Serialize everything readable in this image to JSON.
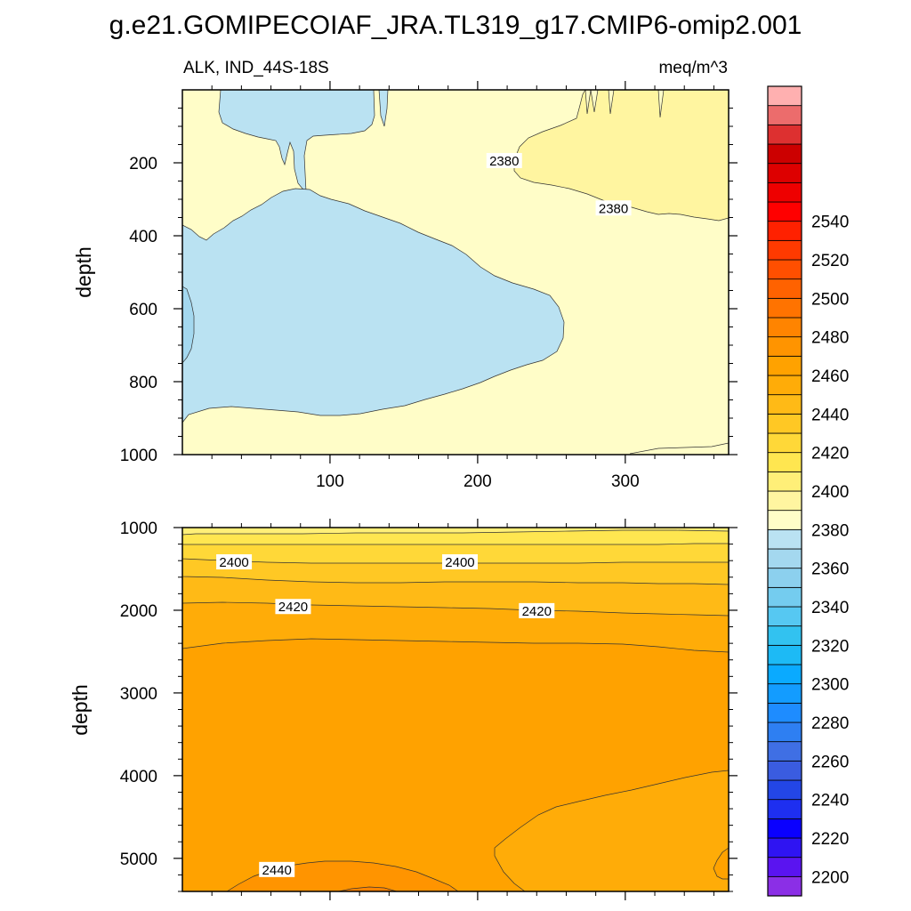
{
  "title": "g.e21.GOMIPECOIAF_JRA.TL319_g17.CMIP6-omip2.001",
  "variable_label": "ALK, IND_44S-18S",
  "units_label": "meq/m^3",
  "colors": {
    "pale_yellow": "#FFFDC8",
    "yellow_2390": "#FFF5A0",
    "yellow_2400": "#FFEF78",
    "yellow_2405": "#FFE650",
    "gold_2410": "#FFD838",
    "gold_2415": "#FFC824",
    "amber_2420": "#FFBA16",
    "orange_2425": "#FFAC08",
    "orange_2430": "#FFA200",
    "orange_2440": "#FF9400",
    "light_blue_2370": "#BAE2F2",
    "contour_line": "#333333"
  },
  "chart_data": [
    {
      "type": "contour",
      "panel": "upper",
      "xlabel": "",
      "ylabel": "depth",
      "xlim": [
        0,
        370
      ],
      "ylim": [
        1000,
        0
      ],
      "x_ticks": [
        100,
        200,
        300
      ],
      "x_tick_labels": [
        "100",
        "200",
        "300"
      ],
      "y_ticks": [
        200,
        400,
        600,
        800,
        1000
      ],
      "y_tick_labels": [
        "200",
        "400",
        "600",
        "800",
        "1000"
      ],
      "contour_labels": [
        {
          "text": "2380",
          "x": 218,
          "y": 195
        },
        {
          "text": "2380",
          "x": 292,
          "y": 325
        }
      ]
    },
    {
      "type": "contour",
      "panel": "lower",
      "xlabel": "",
      "ylabel": "depth",
      "xlim": [
        0,
        370
      ],
      "ylim": [
        5400,
        1000
      ],
      "x_ticks": [
        100,
        200,
        300
      ],
      "y_ticks": [
        1000,
        2000,
        3000,
        4000,
        5000
      ],
      "y_tick_labels": [
        "1000",
        "2000",
        "3000",
        "4000",
        "5000"
      ],
      "contour_labels": [
        {
          "text": "2400",
          "x": 35,
          "y": 1420
        },
        {
          "text": "2400",
          "x": 188,
          "y": 1420
        },
        {
          "text": "2420",
          "x": 75,
          "y": 1960
        },
        {
          "text": "2420",
          "x": 240,
          "y": 2010
        },
        {
          "text": "2440",
          "x": 64,
          "y": 5140
        }
      ]
    }
  ],
  "colorbar": {
    "levels": [
      2195,
      2200,
      2205,
      2210,
      2215,
      2220,
      2225,
      2230,
      2235,
      2240,
      2245,
      2250,
      2255,
      2260,
      2265,
      2270,
      2275,
      2280,
      2285,
      2290,
      2295,
      2300,
      2305,
      2310,
      2315,
      2320,
      2325,
      2330,
      2335,
      2340,
      2345,
      2350,
      2355,
      2360,
      2365,
      2370,
      2375,
      2380,
      2385,
      2390,
      2395,
      2400,
      2405,
      2410,
      2415,
      2420,
      2425,
      2430,
      2435,
      2440,
      2445,
      2450,
      2455,
      2460,
      2465,
      2470,
      2475,
      2480,
      2485,
      2490,
      2495,
      2500,
      2505,
      2510,
      2515,
      2520,
      2525,
      2530,
      2535,
      2540,
      2545,
      2550,
      2555,
      2560
    ],
    "labels": [
      "2200",
      "2220",
      "2240",
      "2260",
      "2280",
      "2300",
      "2320",
      "2340",
      "2360",
      "2380",
      "2400",
      "2420",
      "2440",
      "2460",
      "2480",
      "2500",
      "2520",
      "2540"
    ],
    "label_values": [
      2200,
      2220,
      2240,
      2260,
      2280,
      2300,
      2320,
      2340,
      2360,
      2380,
      2400,
      2420,
      2440,
      2460,
      2480,
      2500,
      2520,
      2540
    ],
    "swatches": [
      "#8B2FE6",
      "#5A14F0",
      "#2F14F2",
      "#0A00FF",
      "#1E2FF0",
      "#2346E6",
      "#3A5CE0",
      "#3F6FE4",
      "#2E7FF2",
      "#1E8CFF",
      "#139CFF",
      "#0AAAFF",
      "#1DBAF5",
      "#32C2F0",
      "#56C8F2",
      "#74CCEF",
      "#8CD0EE",
      "#A4D8EF",
      "#BAE2F2",
      "#FFFDC8",
      "#FFF5A0",
      "#FFEF78",
      "#FFE650",
      "#FFD838",
      "#FFC824",
      "#FFBA16",
      "#FFAC08",
      "#FFA200",
      "#FF9400",
      "#FF8400",
      "#FF7300",
      "#FF6200",
      "#FF4F00",
      "#FF3A00",
      "#FF2100",
      "#FF0000",
      "#EE0000",
      "#DD0000",
      "#CC0000",
      "#DD3030",
      "#EC6C6C",
      "#FFB0B0"
    ]
  }
}
